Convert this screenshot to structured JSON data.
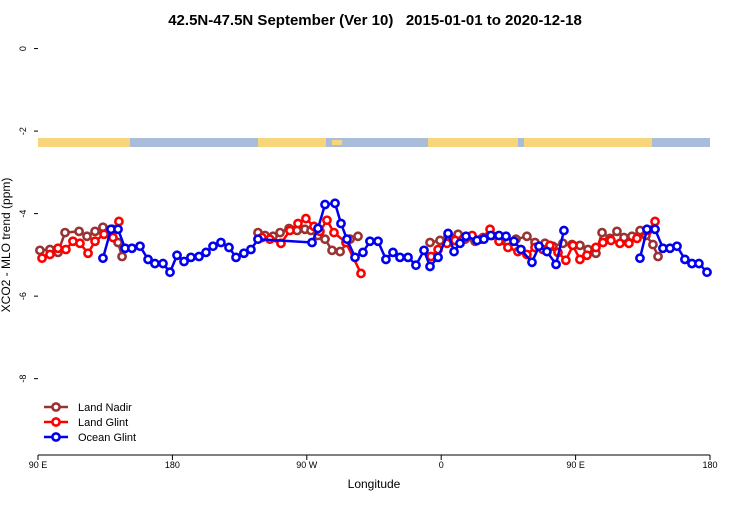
{
  "chart_data": {
    "type": "line",
    "title": "42.5N-47.5N September (Ver 10)   2015-01-01 to 2020-12-18",
    "x_label": "Longitude",
    "y_label": "XCO2 - MLO trend (ppm)",
    "xlim": [
      90,
      540
    ],
    "ylim": [
      -9.85,
      0.45
    ],
    "xticks": [
      {
        "value": 90,
        "label": "90 E"
      },
      180,
      {
        "value": 270,
        "label": "90 W"
      },
      {
        "value": 360,
        "label": "0"
      },
      {
        "value": 450,
        "label": "90 E"
      },
      {
        "value": 540,
        "label": "180"
      }
    ],
    "yticks": [
      0,
      -2,
      -4,
      -6,
      -8
    ],
    "legend": "bottom-left",
    "series": [
      {
        "name": "Land Nadir",
        "color": "#993333",
        "x": [
          91.3,
          98.0,
          103.4,
          108.1,
          117.5,
          122.8,
          128.2,
          133.5,
          140.2,
          143.6,
          146.3,
          null,
          237.3,
          242.0,
          247.4,
          252.1,
          258.1,
          263.5,
          268.8,
          272.8,
          277.5,
          282.2,
          286.9,
          292.3,
          299.0,
          304.3,
          null,
          352.5,
          359.2,
          364.6,
          371.3,
          376.0,
          382.7,
          388.0,
          394.0,
          399.4,
          404.7,
          410.1,
          417.4,
          422.8,
          429.5,
          434.8,
          441.5,
          447.6,
          452.9,
          458.3,
          463.6,
          467.7,
          473.0,
          477.7,
          482.4,
          487.7,
          493.2,
          497.1,
          501.8,
          505.2
        ],
        "values": [
          -4.89,
          -4.87,
          -4.94,
          -4.46,
          -4.43,
          -4.55,
          -4.43,
          -4.33,
          -4.38,
          -4.7,
          -5.04,
          null,
          -4.46,
          -4.53,
          -4.55,
          -4.46,
          -4.36,
          -4.41,
          -4.38,
          -4.41,
          -4.53,
          -4.62,
          -4.89,
          -4.92,
          -4.62,
          -4.55,
          null,
          -4.7,
          -4.65,
          -4.55,
          -4.5,
          -4.62,
          -4.67,
          -4.58,
          -4.53,
          -4.65,
          -4.7,
          -4.62,
          -4.55,
          -4.7,
          -4.72,
          -4.79,
          -4.72,
          -4.75,
          -4.77,
          -4.87,
          -4.96,
          -4.46,
          -4.6,
          -4.43,
          -4.58,
          -4.55,
          -4.41,
          -4.53,
          -4.75,
          -5.04
        ]
      },
      {
        "name": "Land Glint",
        "color": "#ff0000",
        "x": [
          92.7,
          98.0,
          103.4,
          108.7,
          113.4,
          118.1,
          123.5,
          128.2,
          134.2,
          140.2,
          144.2,
          null,
          240.0,
          245.3,
          252.7,
          258.7,
          264.1,
          269.4,
          274.8,
          278.8,
          283.5,
          288.2,
          296.2,
          306.3,
          null,
          353.2,
          357.9,
          363.9,
          369.3,
          374.6,
          380.7,
          386.7,
          392.7,
          398.7,
          404.7,
          411.4,
          417.4,
          422.8,
          428.1,
          432.8,
          438.2,
          443.5,
          448.2,
          452.9,
          457.6,
          463.6,
          468.3,
          473.7,
          479.7,
          485.7,
          491.1,
          498.5,
          503.2
        ],
        "values": [
          -5.08,
          -4.99,
          -4.84,
          -4.87,
          -4.67,
          -4.72,
          -4.96,
          -4.67,
          -4.5,
          -4.58,
          -4.19,
          null,
          -4.58,
          -4.62,
          -4.72,
          -4.41,
          -4.24,
          -4.12,
          -4.31,
          -4.43,
          -4.16,
          -4.46,
          -4.7,
          -5.45,
          null,
          -5.04,
          -4.87,
          -4.72,
          -4.65,
          -4.62,
          -4.53,
          -4.62,
          -4.38,
          -4.67,
          -4.82,
          -4.92,
          -4.99,
          -4.82,
          -4.87,
          -4.77,
          -4.94,
          -5.13,
          -4.77,
          -5.11,
          -5.01,
          -4.82,
          -4.7,
          -4.65,
          -4.72,
          -4.72,
          -4.6,
          -4.41,
          -4.19
        ]
      },
      {
        "name": "Ocean Glint",
        "color": "#0000ee",
        "x": [
          133.5,
          138.9,
          143.6,
          148.3,
          152.9,
          158.3,
          163.7,
          168.3,
          173.7,
          178.4,
          183.1,
          187.8,
          192.4,
          197.8,
          202.5,
          207.2,
          212.5,
          217.9,
          222.6,
          227.9,
          232.6,
          237.3,
          273.5,
          277.5,
          282.2,
          288.9,
          292.9,
          296.9,
          302.3,
          307.6,
          312.3,
          317.7,
          323.0,
          327.7,
          332.4,
          337.8,
          343.1,
          348.5,
          352.5,
          357.9,
          364.6,
          368.6,
          372.6,
          376.6,
          384.0,
          388.6,
          393.3,
          398.7,
          403.4,
          408.7,
          413.4,
          420.8,
          425.5,
          430.8,
          436.9,
          442.2,
          null,
          493.1,
          497.8,
          503.2,
          508.5,
          513.2,
          517.9,
          523.2,
          527.9,
          532.6,
          538.0
        ],
        "values": [
          -5.08,
          -4.38,
          -4.38,
          -4.84,
          -4.84,
          -4.79,
          -5.11,
          -5.21,
          -5.21,
          -5.42,
          -5.01,
          -5.16,
          -5.06,
          -5.04,
          -4.94,
          -4.79,
          -4.7,
          -4.82,
          -5.06,
          -4.96,
          -4.87,
          -4.62,
          -4.7,
          -4.36,
          -3.78,
          -3.75,
          -4.24,
          -4.62,
          -5.06,
          -4.94,
          -4.67,
          -4.67,
          -5.11,
          -4.94,
          -5.06,
          -5.06,
          -5.25,
          -4.89,
          -5.28,
          -5.06,
          -4.48,
          -4.92,
          -4.72,
          -4.55,
          -4.65,
          -4.62,
          -4.53,
          -4.53,
          -4.55,
          -4.67,
          -4.87,
          -5.18,
          -4.79,
          -4.92,
          -5.23,
          -4.41,
          null,
          -5.08,
          -4.38,
          -4.38,
          -4.84,
          -4.84,
          -4.79,
          -5.11,
          -5.21,
          -5.21,
          -5.42
        ]
      }
    ]
  }
}
